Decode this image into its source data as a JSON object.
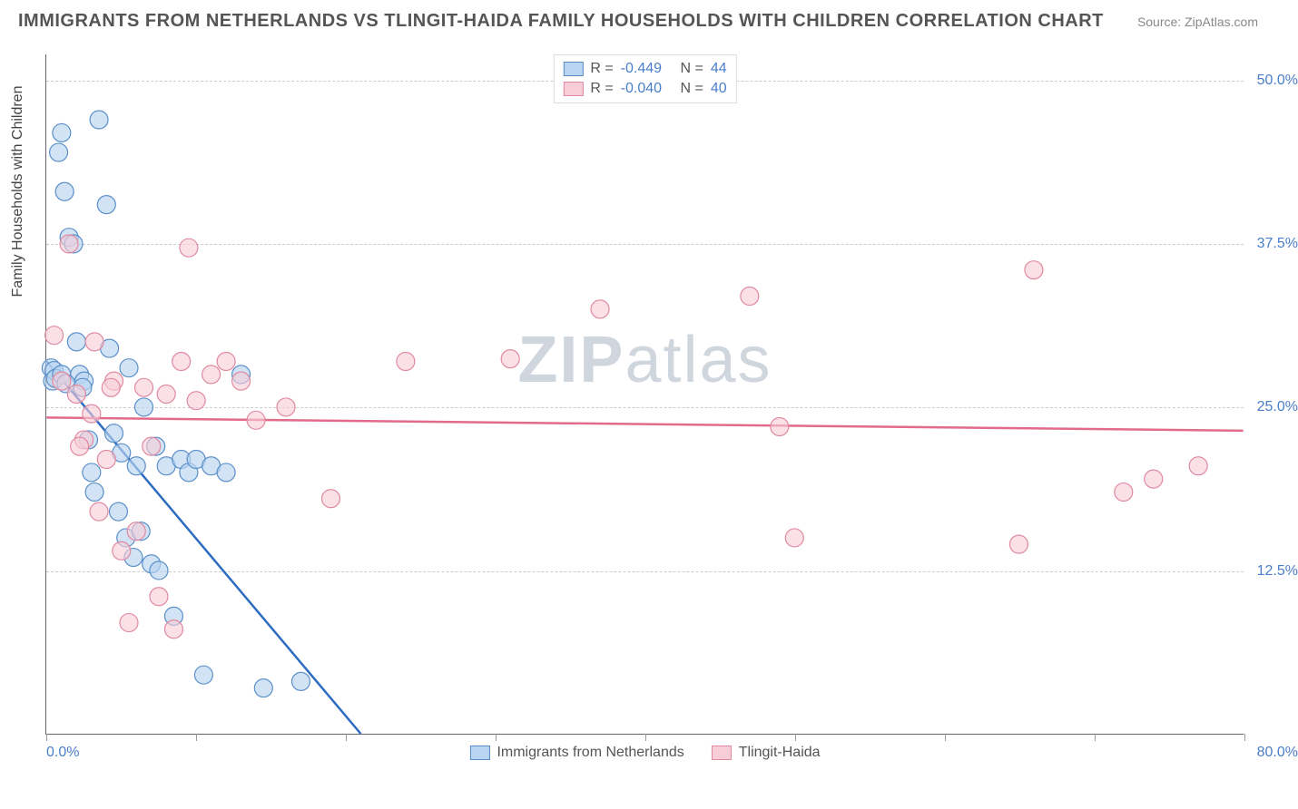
{
  "title": "IMMIGRANTS FROM NETHERLANDS VS TLINGIT-HAIDA FAMILY HOUSEHOLDS WITH CHILDREN CORRELATION CHART",
  "source": "Source: ZipAtlas.com",
  "watermark": {
    "part1": "ZIP",
    "part2": "atlas"
  },
  "ylabel": "Family Households with Children",
  "axes": {
    "x": {
      "min": 0,
      "max": 80,
      "min_label": "0.0%",
      "max_label": "80.0%",
      "tick_positions": [
        0,
        10,
        20,
        30,
        40,
        50,
        60,
        70,
        80
      ]
    },
    "y": {
      "min": 0,
      "max": 52,
      "ticks": [
        12.5,
        25.0,
        37.5,
        50.0
      ],
      "tick_labels": [
        "12.5%",
        "25.0%",
        "37.5%",
        "50.0%"
      ]
    }
  },
  "grid_color": "#cccccc",
  "axis_color": "#666666",
  "tick_label_color": "#4a7ec9",
  "series": [
    {
      "name": "Immigrants from Netherlands",
      "fill": "#b9d4f0",
      "stroke": "#5a8fc9",
      "line_color": "#2d6cc0",
      "marker_radius": 10,
      "marker_opacity": 0.65,
      "line_width": 2.5,
      "r": "-0.449",
      "n": "44",
      "regression": {
        "x1": 0,
        "y1": 28.5,
        "x2": 21,
        "y2": 0
      },
      "points": [
        [
          0.3,
          28.0
        ],
        [
          0.4,
          27.0
        ],
        [
          0.5,
          27.8
        ],
        [
          0.8,
          44.5
        ],
        [
          1.0,
          46.0
        ],
        [
          1.2,
          41.5
        ],
        [
          1.5,
          38.0
        ],
        [
          1.8,
          37.5
        ],
        [
          2.0,
          30.0
        ],
        [
          2.2,
          27.5
        ],
        [
          2.5,
          27.0
        ],
        [
          2.8,
          22.5
        ],
        [
          3.0,
          20.0
        ],
        [
          3.2,
          18.5
        ],
        [
          3.5,
          47.0
        ],
        [
          4.0,
          40.5
        ],
        [
          4.2,
          29.5
        ],
        [
          4.5,
          23.0
        ],
        [
          4.8,
          17.0
        ],
        [
          5.0,
          21.5
        ],
        [
          5.3,
          15.0
        ],
        [
          5.5,
          28.0
        ],
        [
          5.8,
          13.5
        ],
        [
          6.0,
          20.5
        ],
        [
          6.3,
          15.5
        ],
        [
          6.5,
          25.0
        ],
        [
          7.0,
          13.0
        ],
        [
          7.3,
          22.0
        ],
        [
          7.5,
          12.5
        ],
        [
          8.0,
          20.5
        ],
        [
          8.5,
          9.0
        ],
        [
          9.0,
          21.0
        ],
        [
          9.5,
          20.0
        ],
        [
          10.0,
          21.0
        ],
        [
          10.5,
          4.5
        ],
        [
          11.0,
          20.5
        ],
        [
          12.0,
          20.0
        ],
        [
          13.0,
          27.5
        ],
        [
          14.5,
          3.5
        ],
        [
          17.0,
          4.0
        ],
        [
          0.6,
          27.2
        ],
        [
          1.0,
          27.5
        ],
        [
          1.3,
          26.8
        ],
        [
          2.4,
          26.5
        ]
      ]
    },
    {
      "name": "Tlingit-Haida",
      "fill": "#f8cdd7",
      "stroke": "#e089a0",
      "line_color": "#e26a8a",
      "marker_radius": 10,
      "marker_opacity": 0.6,
      "line_width": 2.5,
      "r": "-0.040",
      "n": "40",
      "regression": {
        "x1": 0,
        "y1": 24.2,
        "x2": 80,
        "y2": 23.2
      },
      "points": [
        [
          0.5,
          30.5
        ],
        [
          1.0,
          27.0
        ],
        [
          1.5,
          37.5
        ],
        [
          2.0,
          26.0
        ],
        [
          2.5,
          22.5
        ],
        [
          3.0,
          24.5
        ],
        [
          3.5,
          17.0
        ],
        [
          4.0,
          21.0
        ],
        [
          4.5,
          27.0
        ],
        [
          5.0,
          14.0
        ],
        [
          5.5,
          8.5
        ],
        [
          6.0,
          15.5
        ],
        [
          6.5,
          26.5
        ],
        [
          7.0,
          22.0
        ],
        [
          7.5,
          10.5
        ],
        [
          8.0,
          26.0
        ],
        [
          8.5,
          8.0
        ],
        [
          9.0,
          28.5
        ],
        [
          9.5,
          37.2
        ],
        [
          10.0,
          25.5
        ],
        [
          11.0,
          27.5
        ],
        [
          12.0,
          28.5
        ],
        [
          13.0,
          27.0
        ],
        [
          14.0,
          24.0
        ],
        [
          16.0,
          25.0
        ],
        [
          19.0,
          18.0
        ],
        [
          24.0,
          28.5
        ],
        [
          31.0,
          28.7
        ],
        [
          37.0,
          32.5
        ],
        [
          47.0,
          33.5
        ],
        [
          49.0,
          23.5
        ],
        [
          50.0,
          15.0
        ],
        [
          65.0,
          14.5
        ],
        [
          66.0,
          35.5
        ],
        [
          72.0,
          18.5
        ],
        [
          74.0,
          19.5
        ],
        [
          77.0,
          20.5
        ],
        [
          2.2,
          22.0
        ],
        [
          3.2,
          30.0
        ],
        [
          4.3,
          26.5
        ]
      ]
    }
  ],
  "legend_top": {
    "r_label": "R =",
    "n_label": "N ="
  },
  "legend_bottom_labels": [
    "Immigrants from Netherlands",
    "Tlingit-Haida"
  ]
}
